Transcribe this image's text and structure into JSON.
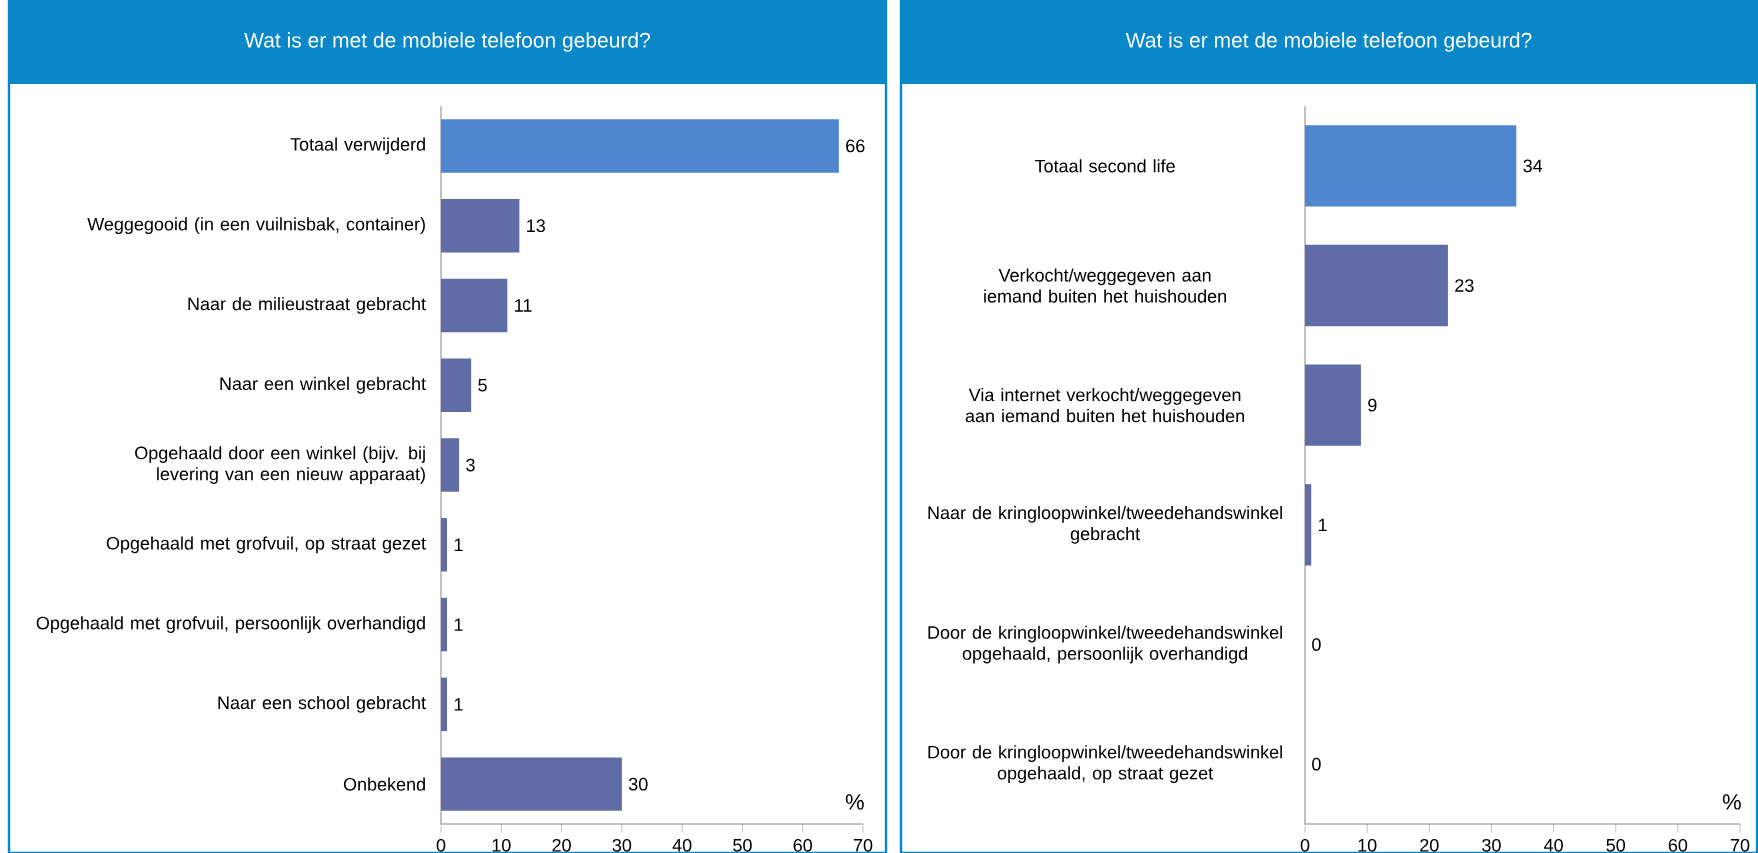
{
  "chart_data": [
    {
      "type": "bar",
      "orientation": "horizontal",
      "title": "Wat is er met de mobiele telefoon gebeurd?",
      "categories": [
        "Totaal verwijderd",
        "Weggegooid (in een vuilnisbak, container)",
        "Naar de milieustraat gebracht",
        "Naar een winkel gebracht",
        "Opgehaald door een winkel (bijv. bij levering van een nieuw apparaat)",
        "Opgehaald met grofvuil, op straat gezet",
        "Opgehaald met grofvuil, persoonlijk overhandigd",
        "Naar een school gebracht",
        "Onbekend"
      ],
      "values": [
        66,
        13,
        11,
        5,
        3,
        1,
        1,
        1,
        30
      ],
      "colors": [
        "#4f86d0",
        "#5f6ca6",
        "#5f6ca6",
        "#5f6ca6",
        "#5f6ca6",
        "#5f6ca6",
        "#5f6ca6",
        "#5f6ca6",
        "#5f6ca6"
      ],
      "xlim": [
        0,
        70
      ],
      "xticks": [
        0,
        10,
        20,
        30,
        40,
        50,
        60,
        70
      ],
      "xlabel": "%",
      "data_labels": true
    },
    {
      "type": "bar",
      "orientation": "horizontal",
      "title": "Wat is er met de mobiele telefoon gebeurd?",
      "categories": [
        "Totaal second life",
        "Verkocht/weggegeven aan iemand buiten het huishouden",
        "Via internet verkocht/weggegeven aan iemand buiten het huishouden",
        "Naar de kringloopwinkel/tweedehandswinkel gebracht",
        "Door de kringloopwinkel/tweedehandswinkel opgehaald, persoonlijk overhandigd",
        "Door de kringloopwinkel/tweedehandswinkel opgehaald, op straat gezet"
      ],
      "values": [
        34,
        23,
        9,
        1,
        0,
        0
      ],
      "colors": [
        "#4f86d0",
        "#5f6ca6",
        "#5f6ca6",
        "#5f6ca6",
        "#5f6ca6",
        "#5f6ca6"
      ],
      "xlim": [
        0,
        70
      ],
      "xticks": [
        0,
        10,
        20,
        30,
        40,
        50,
        60,
        70
      ],
      "xlabel": "%",
      "data_labels": true
    }
  ]
}
